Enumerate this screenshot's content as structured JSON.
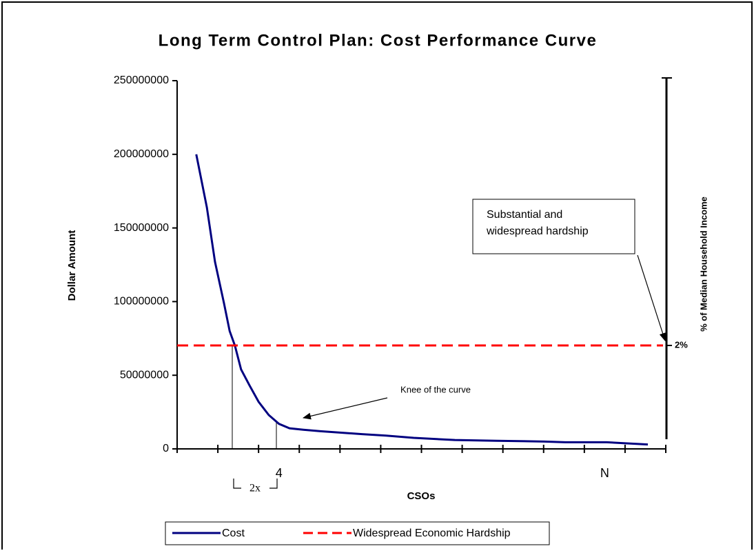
{
  "chart_data": {
    "type": "line",
    "title": "Long Term Control Plan: Cost Performance Curve",
    "y_label": "Dollar Amount",
    "x_label": "CSOs",
    "y2_label": "% of Median Household Income",
    "categories": [
      null,
      null,
      "4",
      null,
      null,
      null,
      null,
      null,
      null,
      null,
      "N",
      null
    ],
    "xlim": [
      0,
      12
    ],
    "ylim": [
      0,
      250000000
    ],
    "yticks": [
      0,
      50000000,
      100000000,
      150000000,
      200000000,
      250000000
    ],
    "y2lim": [
      0,
      7.12
    ],
    "y2ticks": [
      {
        "value": 2,
        "label": "2%"
      }
    ],
    "series": [
      {
        "name": "Cost",
        "color": "#000080",
        "x": [
          0.47,
          0.73,
          0.93,
          1.15,
          1.29,
          1.42,
          1.57,
          1.78,
          2.0,
          2.25,
          2.5,
          2.76,
          3.1,
          3.52,
          4.03,
          4.54,
          5.13,
          5.81,
          6.82,
          7.84,
          9.02,
          9.53,
          10.55,
          11.56
        ],
        "values": [
          200000000,
          164000000,
          127000000,
          99000000,
          80000000,
          70000000,
          54000000,
          43000000,
          32000000,
          23000000,
          17000000,
          14000000,
          13000000,
          12000000,
          11000000,
          10000000,
          9000000,
          7500000,
          6000000,
          5500000,
          5000000,
          4500000,
          4500000,
          3000000
        ]
      },
      {
        "name": "Widespread Economic Hardship",
        "color": "#ff0000",
        "axis": "y2",
        "value": 2
      }
    ],
    "annotations": {
      "knee": "Knee of the curve",
      "hardship": [
        "Substantial and",
        "widespread hardship"
      ],
      "bracket": "2x"
    }
  }
}
